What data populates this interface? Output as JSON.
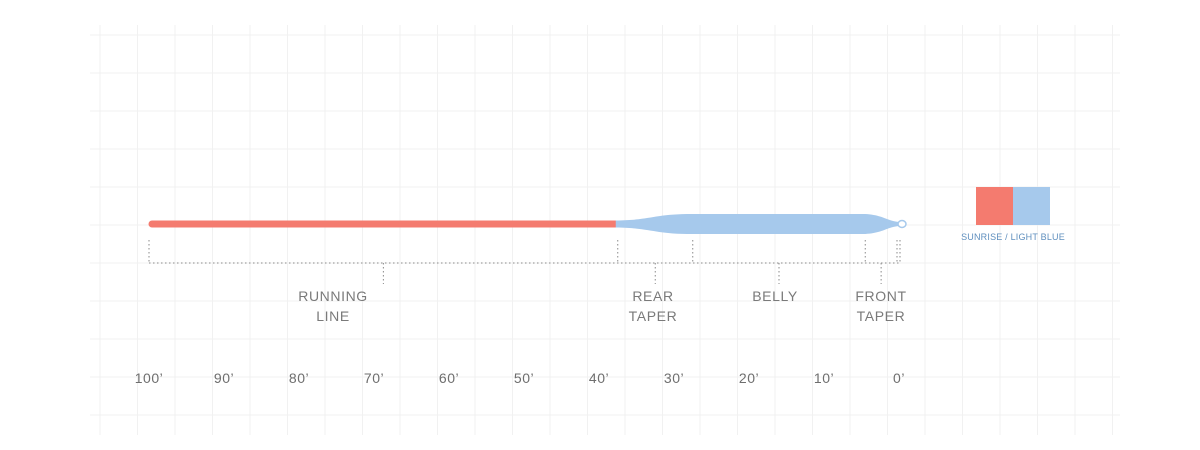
{
  "colors": {
    "running_line": "#f47b6f",
    "head": "#a6c9ec",
    "grid": "#f1f1f1",
    "guide": "#8a8a8a"
  },
  "segments": [
    {
      "id": "running-line",
      "label": "RUNNING\nLINE",
      "start_ft": 100,
      "end_ft": 37.5
    },
    {
      "id": "rear-taper",
      "label": "REAR\nTAPER",
      "start_ft": 37.5,
      "end_ft": 27.5
    },
    {
      "id": "belly",
      "label": "BELLY",
      "start_ft": 27.5,
      "end_ft": 4.5
    },
    {
      "id": "front-taper",
      "label": "FRONT\nTAPER",
      "start_ft": 4.5,
      "end_ft": 0
    }
  ],
  "scale": {
    "ticks": [
      100,
      90,
      80,
      70,
      60,
      50,
      40,
      30,
      20,
      10,
      0
    ],
    "labels": [
      "100’",
      "90’",
      "80’",
      "70’",
      "60’",
      "50’",
      "40’",
      "30’",
      "20’",
      "10’",
      "0’"
    ]
  },
  "legend": {
    "colors": [
      "#f47b6f",
      "#a6c9ec"
    ],
    "label": "SUNRISE / LIGHT BLUE"
  }
}
